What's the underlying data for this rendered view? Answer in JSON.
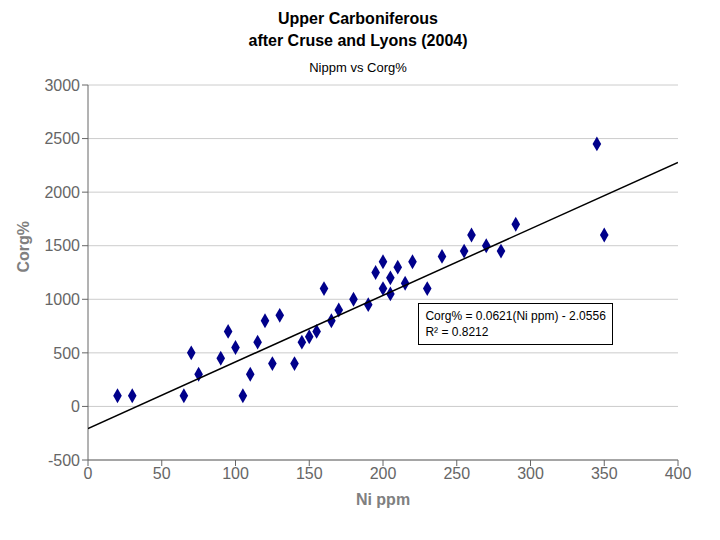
{
  "chart_data": {
    "type": "scatter",
    "title": [
      "Upper Carboniferous",
      "after Cruse and Lyons (2004)"
    ],
    "subtitle": "Nippm vs Corg%",
    "x_label": "Ni ppm",
    "y_label": "Corg%",
    "xlim": [
      0,
      400
    ],
    "ylim": [
      -500,
      3000
    ],
    "xticks": [
      0,
      50,
      100,
      150,
      200,
      250,
      300,
      350,
      400
    ],
    "yticks": [
      -500,
      0,
      500,
      1000,
      1500,
      2000,
      2500,
      3000
    ],
    "grid": true,
    "annotations": [
      "Corg% = 0.0621(Ni ppm) - 2.0556",
      "R² = 0.8212"
    ],
    "series": [
      {
        "type": "scatter",
        "color": "#00008b",
        "marker": "diamond",
        "x": [
          20,
          30,
          65,
          70,
          75,
          90,
          95,
          100,
          105,
          110,
          115,
          120,
          125,
          130,
          140,
          145,
          150,
          155,
          160,
          165,
          170,
          180,
          190,
          195,
          200,
          200,
          205,
          205,
          210,
          215,
          220,
          230,
          240,
          255,
          260,
          270,
          280,
          290,
          345,
          350
        ],
        "values": [
          100,
          100,
          100,
          500,
          300,
          450,
          700,
          550,
          100,
          300,
          600,
          800,
          400,
          850,
          400,
          600,
          650,
          700,
          1100,
          800,
          900,
          1000,
          950,
          1250,
          1100,
          1350,
          1050,
          1200,
          1300,
          1150,
          1350,
          1100,
          1400,
          1450,
          1600,
          1500,
          1450,
          1700,
          2450,
          1600
        ]
      },
      {
        "type": "line",
        "color": "black",
        "x": [
          0,
          400
        ],
        "values": [
          -205.56,
          2278.44
        ]
      }
    ]
  }
}
